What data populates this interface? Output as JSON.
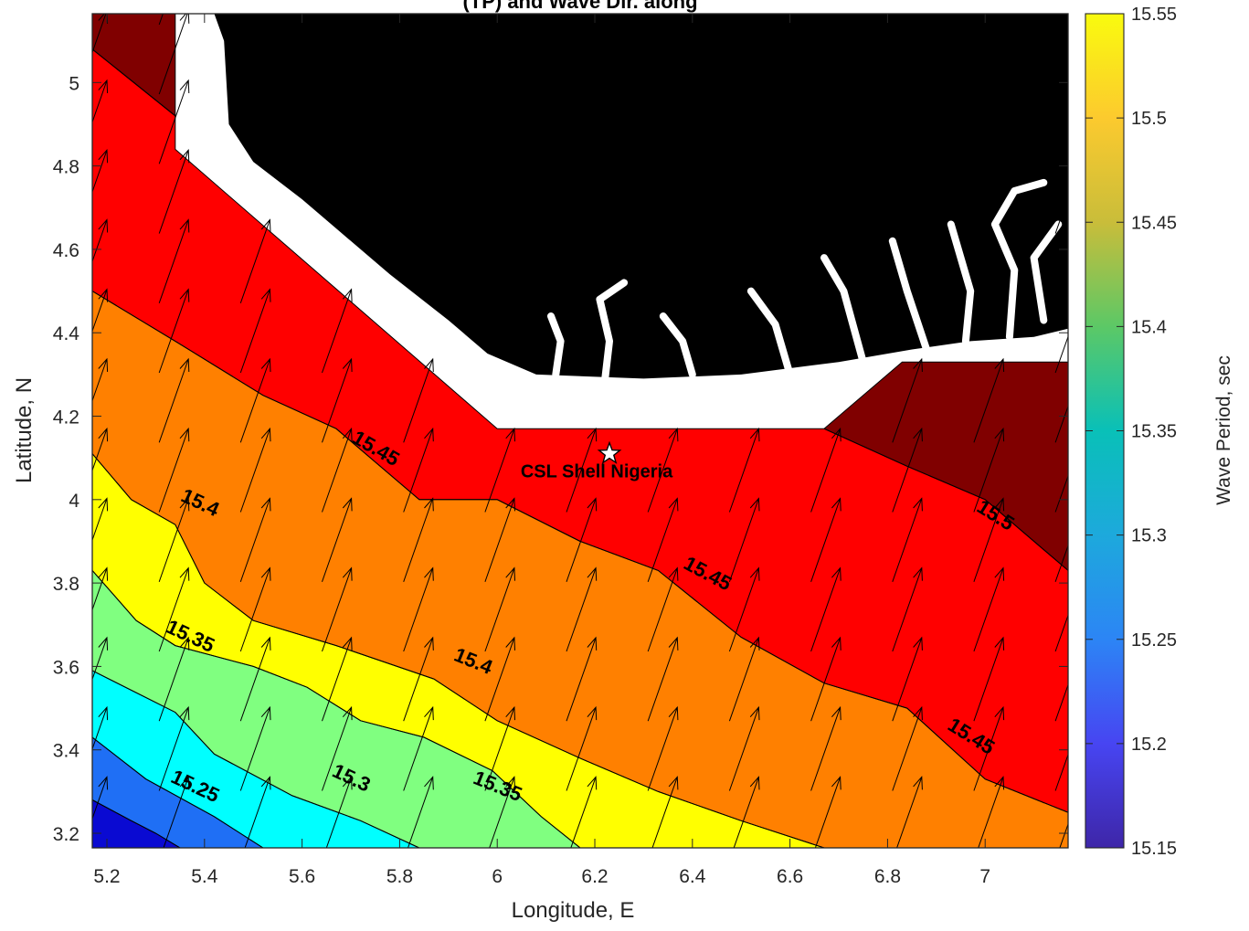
{
  "figure": {
    "title": "(TP) and Wave Dir. along"
  },
  "chart_data": {
    "type": "contour",
    "title": "(TP) and Wave Dir. along",
    "xlabel": "Longitude, E",
    "ylabel": "Latitude, N",
    "xlim": [
      5.17,
      7.17
    ],
    "ylim": [
      3.165,
      5.165
    ],
    "xticks": [
      "5.2",
      "5.4",
      "5.6",
      "5.8",
      "6",
      "6.2",
      "6.4",
      "6.6",
      "6.8",
      "7"
    ],
    "yticks": [
      "3.2",
      "3.4",
      "3.6",
      "3.8",
      "4",
      "4.2",
      "4.4",
      "4.6",
      "4.8",
      "5"
    ],
    "colorbar": {
      "label": "Wave Period, sec",
      "range": [
        15.15,
        15.55
      ],
      "ticks": [
        "15.15",
        "15.2",
        "15.25",
        "15.3",
        "15.35",
        "15.4",
        "15.45",
        "15.5",
        "15.55"
      ],
      "colormap": "parula"
    },
    "contour_levels": [
      "15.25",
      "15.3",
      "15.35",
      "15.4",
      "15.45",
      "15.5"
    ],
    "contour_labels": [
      {
        "text": "15.45",
        "x": 5.75,
        "y": 4.12,
        "angle": 30
      },
      {
        "text": "15.4",
        "x": 5.39,
        "y": 3.99,
        "angle": 25
      },
      {
        "text": "15.35",
        "x": 5.37,
        "y": 3.67,
        "angle": 25
      },
      {
        "text": "15.25",
        "x": 5.38,
        "y": 3.31,
        "angle": 25
      },
      {
        "text": "15.3",
        "x": 5.7,
        "y": 3.33,
        "angle": 25
      },
      {
        "text": "15.35",
        "x": 6.0,
        "y": 3.31,
        "angle": 22
      },
      {
        "text": "15.4",
        "x": 5.95,
        "y": 3.61,
        "angle": 22
      },
      {
        "text": "15.45",
        "x": 6.43,
        "y": 3.82,
        "angle": 28
      },
      {
        "text": "15.45",
        "x": 6.97,
        "y": 3.43,
        "angle": 32
      },
      {
        "text": "15.5",
        "x": 7.02,
        "y": 3.96,
        "angle": 32
      }
    ],
    "bands": [
      {
        "period_range": "<15.25",
        "color": "#0a0ad2",
        "outline": [
          [
            5.17,
            3.28
          ],
          [
            5.17,
            3.165
          ],
          [
            5.35,
            3.165
          ],
          [
            5.3,
            3.2
          ],
          [
            5.25,
            3.23
          ]
        ]
      },
      {
        "period_range": "15.25-15.3",
        "color": "#1f6ff5",
        "outline": [
          [
            5.17,
            3.28
          ],
          [
            5.25,
            3.23
          ],
          [
            5.3,
            3.2
          ],
          [
            5.35,
            3.165
          ],
          [
            5.52,
            3.165
          ],
          [
            5.42,
            3.24
          ],
          [
            5.28,
            3.33
          ],
          [
            5.17,
            3.43
          ]
        ]
      },
      {
        "period_range": "15.3-15.35",
        "color": "#00ffff",
        "outline": [
          [
            5.17,
            3.43
          ],
          [
            5.28,
            3.33
          ],
          [
            5.42,
            3.24
          ],
          [
            5.52,
            3.165
          ],
          [
            5.84,
            3.165
          ],
          [
            5.72,
            3.23
          ],
          [
            5.58,
            3.29
          ],
          [
            5.42,
            3.39
          ],
          [
            5.34,
            3.49
          ],
          [
            5.17,
            3.59
          ]
        ]
      },
      {
        "period_range": "15.35-15.4",
        "color": "#80ff80",
        "outline": [
          [
            5.17,
            3.59
          ],
          [
            5.34,
            3.49
          ],
          [
            5.42,
            3.39
          ],
          [
            5.58,
            3.29
          ],
          [
            5.72,
            3.23
          ],
          [
            5.84,
            3.165
          ],
          [
            6.17,
            3.165
          ],
          [
            6.09,
            3.24
          ],
          [
            5.99,
            3.35
          ],
          [
            5.85,
            3.43
          ],
          [
            5.72,
            3.47
          ],
          [
            5.61,
            3.55
          ],
          [
            5.5,
            3.6
          ],
          [
            5.34,
            3.65
          ],
          [
            5.26,
            3.71
          ],
          [
            5.17,
            3.83
          ]
        ]
      },
      {
        "period_range": "15.4-15.45",
        "color": "#ffff00",
        "outline": [
          [
            5.17,
            3.83
          ],
          [
            5.26,
            3.71
          ],
          [
            5.34,
            3.65
          ],
          [
            5.5,
            3.6
          ],
          [
            5.61,
            3.55
          ],
          [
            5.72,
            3.47
          ],
          [
            5.85,
            3.43
          ],
          [
            5.99,
            3.35
          ],
          [
            6.09,
            3.24
          ],
          [
            6.17,
            3.165
          ],
          [
            6.67,
            3.165
          ],
          [
            6.5,
            3.23
          ],
          [
            6.33,
            3.3
          ],
          [
            6.17,
            3.38
          ],
          [
            6.0,
            3.47
          ],
          [
            5.87,
            3.57
          ],
          [
            5.67,
            3.65
          ],
          [
            5.5,
            3.71
          ],
          [
            5.4,
            3.8
          ],
          [
            5.34,
            3.94
          ],
          [
            5.25,
            4.0
          ],
          [
            5.17,
            4.11
          ]
        ]
      },
      {
        "period_range": "15.45-15.5",
        "color": "#ff8000",
        "outline": [
          [
            5.17,
            4.11
          ],
          [
            5.25,
            4.0
          ],
          [
            5.34,
            3.94
          ],
          [
            5.4,
            3.8
          ],
          [
            5.5,
            3.71
          ],
          [
            5.67,
            3.65
          ],
          [
            5.87,
            3.57
          ],
          [
            6.0,
            3.47
          ],
          [
            6.17,
            3.38
          ],
          [
            6.33,
            3.3
          ],
          [
            6.5,
            3.23
          ],
          [
            6.67,
            3.165
          ],
          [
            7.17,
            3.165
          ],
          [
            7.17,
            3.25
          ],
          [
            7.0,
            3.33
          ],
          [
            6.84,
            3.5
          ],
          [
            6.67,
            3.56
          ],
          [
            6.5,
            3.67
          ],
          [
            6.33,
            3.83
          ],
          [
            6.17,
            3.9
          ],
          [
            6.0,
            4.0
          ],
          [
            5.84,
            4.0
          ],
          [
            5.67,
            4.17
          ],
          [
            5.52,
            4.25
          ],
          [
            5.34,
            4.38
          ],
          [
            5.17,
            4.5
          ]
        ]
      },
      {
        "period_range": "15.5-15.55",
        "color": "#ff0000",
        "outline": [
          [
            5.17,
            4.5
          ],
          [
            5.34,
            4.38
          ],
          [
            5.52,
            4.25
          ],
          [
            5.67,
            4.17
          ],
          [
            5.84,
            4.0
          ],
          [
            6.0,
            4.0
          ],
          [
            6.17,
            3.9
          ],
          [
            6.33,
            3.83
          ],
          [
            6.5,
            3.67
          ],
          [
            6.67,
            3.56
          ],
          [
            6.84,
            3.5
          ],
          [
            7.0,
            3.33
          ],
          [
            7.17,
            3.25
          ],
          [
            7.17,
            3.83
          ],
          [
            7.0,
            4.0
          ],
          [
            6.84,
            4.08
          ],
          [
            6.67,
            4.17
          ],
          [
            6.0,
            4.17
          ],
          [
            5.34,
            4.84
          ],
          [
            5.34,
            4.92
          ],
          [
            5.17,
            5.08
          ]
        ]
      },
      {
        "period_range": ">15.55",
        "color": "#800000",
        "outline": [
          [
            7.17,
            3.83
          ],
          [
            7.17,
            4.33
          ],
          [
            6.83,
            4.33
          ],
          [
            6.67,
            4.17
          ],
          [
            6.84,
            4.08
          ],
          [
            7.0,
            4.0
          ]
        ]
      },
      {
        "period_range": ">15.55",
        "color": "#800000",
        "outline": [
          [
            5.17,
            5.08
          ],
          [
            5.34,
            4.92
          ],
          [
            5.34,
            5.165
          ],
          [
            5.17,
            5.165
          ]
        ]
      }
    ],
    "no_data_region": {
      "color": "#ffffff",
      "outline": [
        [
          5.34,
          4.84
        ],
        [
          5.34,
          5.165
        ],
        [
          7.17,
          5.165
        ],
        [
          7.17,
          4.33
        ],
        [
          6.83,
          4.33
        ],
        [
          6.67,
          4.17
        ],
        [
          6.0,
          4.17
        ]
      ]
    },
    "land": {
      "color": "#000000",
      "coastline": [
        [
          5.42,
          5.165
        ],
        [
          5.44,
          5.1
        ],
        [
          5.45,
          4.9
        ],
        [
          5.5,
          4.81
        ],
        [
          5.6,
          4.72
        ],
        [
          5.7,
          4.62
        ],
        [
          5.78,
          4.54
        ],
        [
          5.9,
          4.43
        ],
        [
          5.98,
          4.35
        ],
        [
          6.08,
          4.3
        ],
        [
          6.3,
          4.29
        ],
        [
          6.5,
          4.3
        ],
        [
          6.7,
          4.33
        ],
        [
          6.85,
          4.36
        ],
        [
          6.97,
          4.38
        ],
        [
          7.1,
          4.39
        ],
        [
          7.17,
          4.41
        ]
      ]
    },
    "creeks": [
      [
        [
          6.12,
          4.3
        ],
        [
          6.13,
          4.38
        ],
        [
          6.11,
          4.44
        ]
      ],
      [
        [
          6.22,
          4.28
        ],
        [
          6.23,
          4.38
        ],
        [
          6.21,
          4.48
        ],
        [
          6.26,
          4.52
        ]
      ],
      [
        [
          6.4,
          4.3
        ],
        [
          6.38,
          4.38
        ],
        [
          6.34,
          4.44
        ]
      ],
      [
        [
          6.6,
          4.3
        ],
        [
          6.57,
          4.42
        ],
        [
          6.52,
          4.5
        ]
      ],
      [
        [
          6.75,
          4.33
        ],
        [
          6.71,
          4.5
        ],
        [
          6.67,
          4.58
        ]
      ],
      [
        [
          6.88,
          4.36
        ],
        [
          6.84,
          4.5
        ],
        [
          6.81,
          4.62
        ]
      ],
      [
        [
          6.96,
          4.38
        ],
        [
          6.97,
          4.5
        ],
        [
          6.93,
          4.66
        ]
      ],
      [
        [
          7.05,
          4.39
        ],
        [
          7.06,
          4.55
        ],
        [
          7.02,
          4.66
        ],
        [
          7.06,
          4.74
        ],
        [
          7.12,
          4.76
        ]
      ],
      [
        [
          7.12,
          4.43
        ],
        [
          7.1,
          4.58
        ],
        [
          7.15,
          4.66
        ]
      ]
    ],
    "wave_direction": {
      "dx_per_unit": 0.06,
      "dy_per_unit": 0.2,
      "grid_spacing": 0.167
    },
    "annotations": [
      {
        "text": "CSL Shell Nigeria",
        "x": 6.23,
        "y": 4.11,
        "marker": "star"
      }
    ]
  }
}
